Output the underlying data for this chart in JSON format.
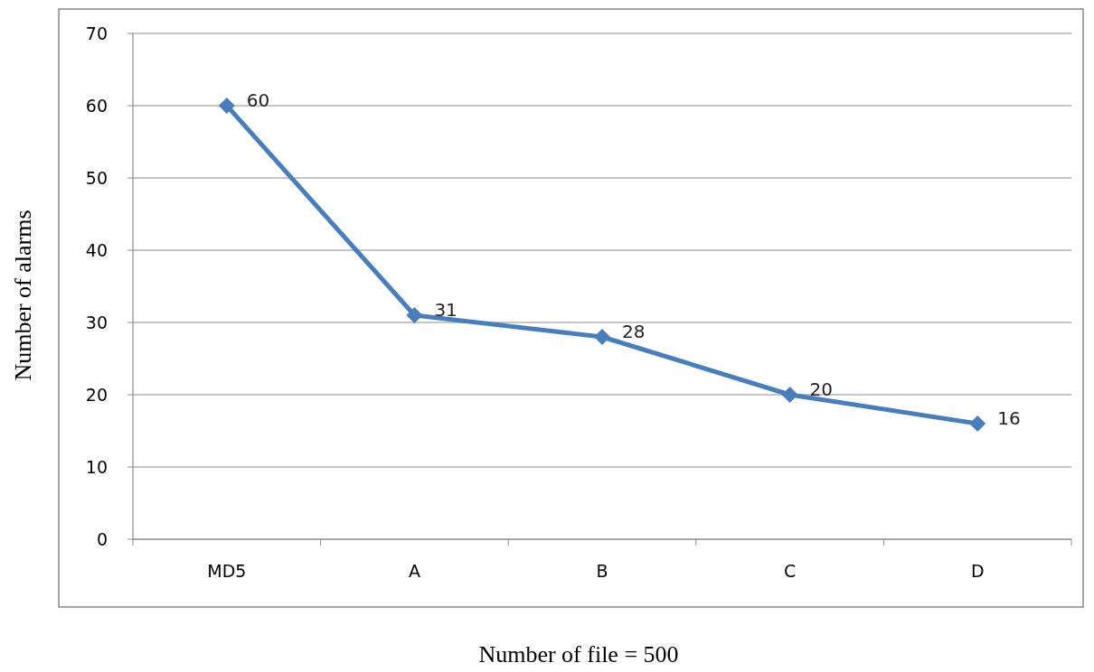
{
  "chart_data": {
    "type": "line",
    "xlabel": "Number of file = 500",
    "ylabel": "Number of alarms",
    "categories": [
      "MD5",
      "A",
      "B",
      "C",
      "D"
    ],
    "series": [
      {
        "color": "#4a7ebb",
        "values": [
          60,
          31,
          28,
          20,
          16
        ]
      }
    ],
    "ylim": [
      0,
      70
    ],
    "yticks": [
      0,
      10,
      20,
      30,
      40,
      50,
      60,
      70
    ],
    "grid": "y",
    "marker": "diamond",
    "line_style": "solid",
    "data_labels": true
  }
}
